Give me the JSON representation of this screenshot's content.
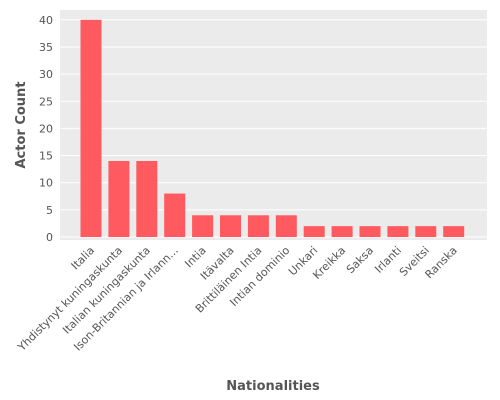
{
  "chart_data": {
    "type": "bar",
    "title": "",
    "xlabel": "Nationalities",
    "ylabel": "Actor Count",
    "ylim": [
      0,
      42
    ],
    "yticks": [
      0,
      5,
      10,
      15,
      20,
      25,
      30,
      35,
      40
    ],
    "grid": true,
    "legend": "none",
    "bar_color": "#ff5a5f",
    "categories": [
      "Italia",
      "Yhdistynyt kuningaskunta",
      "Italian kuningaskunta",
      "Ison-Britannian ja Irlann...",
      "Intia",
      "Itävalta",
      "Brittiläinen Intia",
      "Intian dominio",
      "Unkari",
      "Kreikka",
      "Saksa",
      "Irlanti",
      "Sveitsi",
      "Ranska"
    ],
    "values": [
      40,
      14,
      14,
      8,
      4,
      4,
      4,
      4,
      2,
      2,
      2,
      2,
      2,
      2
    ]
  }
}
